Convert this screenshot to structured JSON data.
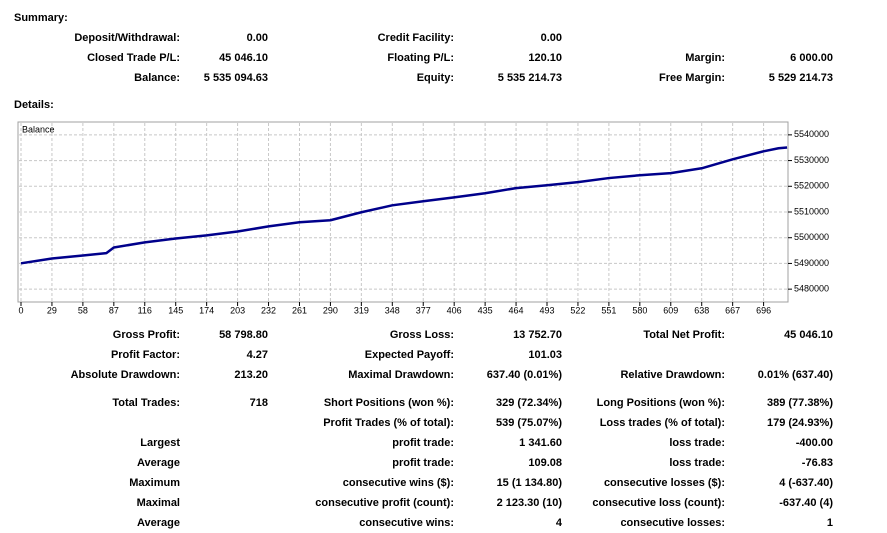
{
  "summary": {
    "title": "Summary:",
    "rows": [
      {
        "l1": "Deposit/Withdrawal:",
        "v1": "0.00",
        "l2": "Credit Facility:",
        "v2": "0.00"
      },
      {
        "l1": "Closed Trade P/L:",
        "v1": "45 046.10",
        "l2": "Floating P/L:",
        "v2": "120.10",
        "l3": "Margin:",
        "v3": "6 000.00"
      },
      {
        "l1": "Balance:",
        "v1": "5 535 094.63",
        "l2": "Equity:",
        "v2": "5 535 214.73",
        "l3": "Free Margin:",
        "v3": "5 529 214.73"
      }
    ]
  },
  "details_title": "Details:",
  "chart_data": {
    "type": "line",
    "label": "Balance",
    "color": "#00008b",
    "grid": true,
    "xlim": [
      0,
      717
    ],
    "ylim": [
      5475000,
      5545000
    ],
    "xticks": [
      0,
      29,
      58,
      87,
      116,
      145,
      174,
      203,
      232,
      261,
      290,
      319,
      348,
      377,
      406,
      435,
      464,
      493,
      522,
      551,
      580,
      609,
      638,
      667,
      696
    ],
    "yticks": [
      5480000,
      5490000,
      5500000,
      5510000,
      5520000,
      5530000,
      5540000
    ],
    "x": [
      0,
      29,
      58,
      80,
      87,
      116,
      145,
      174,
      203,
      232,
      261,
      290,
      319,
      348,
      377,
      406,
      435,
      464,
      493,
      522,
      551,
      580,
      609,
      638,
      667,
      696,
      710,
      718
    ],
    "values": [
      5490049,
      5491900,
      5493100,
      5494000,
      5496200,
      5498200,
      5499700,
      5500900,
      5502400,
      5504400,
      5506000,
      5506800,
      5509900,
      5512600,
      5514200,
      5515700,
      5517300,
      5519300,
      5520400,
      5521600,
      5523200,
      5524300,
      5525100,
      5527000,
      5530500,
      5533600,
      5534800,
      5535095
    ]
  },
  "details": {
    "rows": [
      {
        "l1": "Gross Profit:",
        "v1": "58 798.80",
        "l2": "Gross Loss:",
        "v2": "13 752.70",
        "l3": "Total Net Profit:",
        "v3": "45 046.10"
      },
      {
        "l1": "Profit Factor:",
        "v1": "4.27",
        "l2": "Expected Payoff:",
        "v2": "101.03"
      },
      {
        "l1": "Absolute Drawdown:",
        "v1": "213.20",
        "l2": "Maximal Drawdown:",
        "v2": "637.40 (0.01%)",
        "l3": "Relative Drawdown:",
        "v3": "0.01% (637.40)"
      },
      {
        "l1": "Total Trades:",
        "v1": "718",
        "l2": "Short Positions (won %):",
        "v2": "329 (72.34%)",
        "l3": "Long Positions (won %):",
        "v3": "389 (77.38%)"
      },
      {
        "l2": "Profit Trades (% of total):",
        "v2": "539 (75.07%)",
        "l3": "Loss trades (% of total):",
        "v3": "179 (24.93%)"
      },
      {
        "l1": "Largest",
        "l2": "profit trade:",
        "v2": "1 341.60",
        "l3": "loss trade:",
        "v3": "-400.00"
      },
      {
        "l1": "Average",
        "l2": "profit trade:",
        "v2": "109.08",
        "l3": "loss trade:",
        "v3": "-76.83"
      },
      {
        "l1": "Maximum",
        "l2": "consecutive wins ($):",
        "v2": "15 (1 134.80)",
        "l3": "consecutive losses ($):",
        "v3": "4 (-637.40)"
      },
      {
        "l1": "Maximal",
        "l2": "consecutive profit (count):",
        "v2": "2 123.30 (10)",
        "l3": "consecutive loss (count):",
        "v3": "-637.40 (4)"
      },
      {
        "l1": "Average",
        "l2": "consecutive wins:",
        "v2": "4",
        "l3": "consecutive losses:",
        "v3": "1"
      }
    ]
  }
}
